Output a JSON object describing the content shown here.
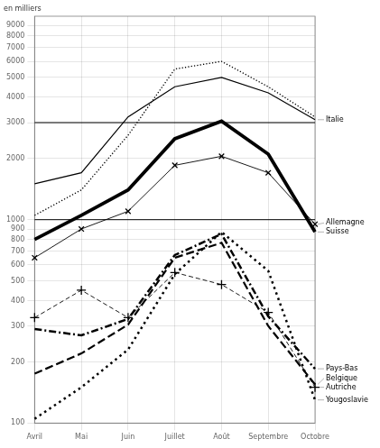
{
  "chart_data": {
    "type": "line",
    "ylabel": "en milliers",
    "categories": [
      "Avril",
      "Mai",
      "Juin",
      "Juillet",
      "Août",
      "Septembre",
      "Octobre"
    ],
    "log": "y",
    "ylim": [
      100,
      10000
    ],
    "yticks": [
      100,
      200,
      300,
      400,
      500,
      600,
      700,
      800,
      900,
      1000,
      2000,
      3000,
      4000,
      5000,
      6000,
      7000,
      8000,
      9000
    ],
    "grid": true,
    "hlines": [
      1000,
      3000
    ],
    "series": [
      {
        "color": "#000000",
        "line_style": "dotted",
        "values": [
          1050,
          1400,
          2600,
          5500,
          6000,
          4500,
          3200
        ]
      },
      {
        "name": "Italie",
        "color": "#000000",
        "line_style": "solid",
        "values": [
          1500,
          1700,
          3200,
          4500,
          5000,
          4200,
          3100
        ]
      },
      {
        "name": "Suisse",
        "color": "#000000",
        "line_style": "solid",
        "values": [
          800,
          1050,
          1400,
          2500,
          3050,
          2100,
          870
        ]
      },
      {
        "name": "Allemagne",
        "color": "#000000",
        "line_style": "solid",
        "marker": "x",
        "values": [
          650,
          900,
          1100,
          1850,
          2050,
          1700,
          950
        ]
      },
      {
        "name": "Autriche",
        "color": "#000000",
        "line_style": "dashed",
        "marker": "+",
        "values": [
          330,
          450,
          330,
          550,
          480,
          350,
          150
        ]
      },
      {
        "name": "Pays-Bas",
        "color": "#000000",
        "line_style": "dashdot",
        "values": [
          290,
          270,
          325,
          670,
          850,
          335,
          185
        ]
      },
      {
        "name": "Belgique",
        "color": "#000000",
        "line_style": "dashed",
        "values": [
          175,
          220,
          305,
          650,
          770,
          300,
          155
        ]
      },
      {
        "name": "Yougoslavie",
        "color": "#000000",
        "line_style": "dotted",
        "values": [
          105,
          150,
          230,
          540,
          870,
          560,
          130
        ]
      }
    ]
  }
}
